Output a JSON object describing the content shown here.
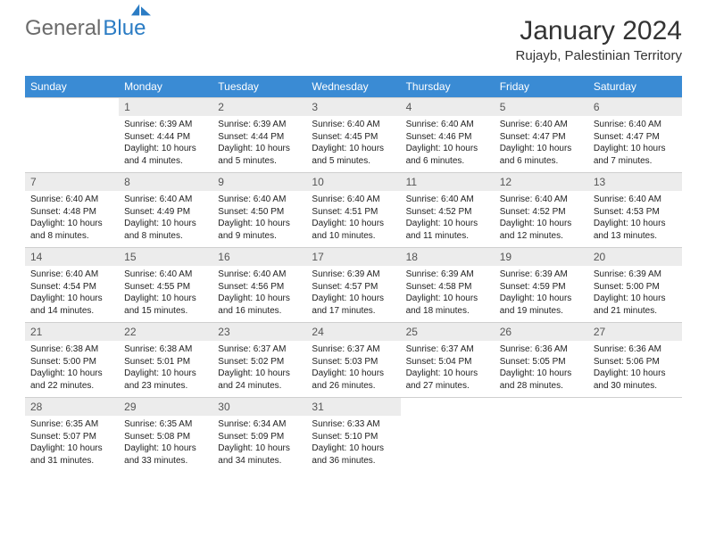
{
  "brand": {
    "part1": "General",
    "part2": "Blue"
  },
  "title": "January 2024",
  "location": "Rujayb, Palestinian Territory",
  "colors": {
    "header_bg": "#3a8bd4",
    "header_text": "#ffffff",
    "daynum_bg": "#ececec",
    "brand_blue": "#2b7cc4",
    "brand_gray": "#6b6b6b",
    "cell_border": "#cfcfcf"
  },
  "weekdays": [
    "Sunday",
    "Monday",
    "Tuesday",
    "Wednesday",
    "Thursday",
    "Friday",
    "Saturday"
  ],
  "start_blanks": 1,
  "days": [
    {
      "n": "1",
      "sunrise": "Sunrise: 6:39 AM",
      "sunset": "Sunset: 4:44 PM",
      "daylight": "Daylight: 10 hours and 4 minutes."
    },
    {
      "n": "2",
      "sunrise": "Sunrise: 6:39 AM",
      "sunset": "Sunset: 4:44 PM",
      "daylight": "Daylight: 10 hours and 5 minutes."
    },
    {
      "n": "3",
      "sunrise": "Sunrise: 6:40 AM",
      "sunset": "Sunset: 4:45 PM",
      "daylight": "Daylight: 10 hours and 5 minutes."
    },
    {
      "n": "4",
      "sunrise": "Sunrise: 6:40 AM",
      "sunset": "Sunset: 4:46 PM",
      "daylight": "Daylight: 10 hours and 6 minutes."
    },
    {
      "n": "5",
      "sunrise": "Sunrise: 6:40 AM",
      "sunset": "Sunset: 4:47 PM",
      "daylight": "Daylight: 10 hours and 6 minutes."
    },
    {
      "n": "6",
      "sunrise": "Sunrise: 6:40 AM",
      "sunset": "Sunset: 4:47 PM",
      "daylight": "Daylight: 10 hours and 7 minutes."
    },
    {
      "n": "7",
      "sunrise": "Sunrise: 6:40 AM",
      "sunset": "Sunset: 4:48 PM",
      "daylight": "Daylight: 10 hours and 8 minutes."
    },
    {
      "n": "8",
      "sunrise": "Sunrise: 6:40 AM",
      "sunset": "Sunset: 4:49 PM",
      "daylight": "Daylight: 10 hours and 8 minutes."
    },
    {
      "n": "9",
      "sunrise": "Sunrise: 6:40 AM",
      "sunset": "Sunset: 4:50 PM",
      "daylight": "Daylight: 10 hours and 9 minutes."
    },
    {
      "n": "10",
      "sunrise": "Sunrise: 6:40 AM",
      "sunset": "Sunset: 4:51 PM",
      "daylight": "Daylight: 10 hours and 10 minutes."
    },
    {
      "n": "11",
      "sunrise": "Sunrise: 6:40 AM",
      "sunset": "Sunset: 4:52 PM",
      "daylight": "Daylight: 10 hours and 11 minutes."
    },
    {
      "n": "12",
      "sunrise": "Sunrise: 6:40 AM",
      "sunset": "Sunset: 4:52 PM",
      "daylight": "Daylight: 10 hours and 12 minutes."
    },
    {
      "n": "13",
      "sunrise": "Sunrise: 6:40 AM",
      "sunset": "Sunset: 4:53 PM",
      "daylight": "Daylight: 10 hours and 13 minutes."
    },
    {
      "n": "14",
      "sunrise": "Sunrise: 6:40 AM",
      "sunset": "Sunset: 4:54 PM",
      "daylight": "Daylight: 10 hours and 14 minutes."
    },
    {
      "n": "15",
      "sunrise": "Sunrise: 6:40 AM",
      "sunset": "Sunset: 4:55 PM",
      "daylight": "Daylight: 10 hours and 15 minutes."
    },
    {
      "n": "16",
      "sunrise": "Sunrise: 6:40 AM",
      "sunset": "Sunset: 4:56 PM",
      "daylight": "Daylight: 10 hours and 16 minutes."
    },
    {
      "n": "17",
      "sunrise": "Sunrise: 6:39 AM",
      "sunset": "Sunset: 4:57 PM",
      "daylight": "Daylight: 10 hours and 17 minutes."
    },
    {
      "n": "18",
      "sunrise": "Sunrise: 6:39 AM",
      "sunset": "Sunset: 4:58 PM",
      "daylight": "Daylight: 10 hours and 18 minutes."
    },
    {
      "n": "19",
      "sunrise": "Sunrise: 6:39 AM",
      "sunset": "Sunset: 4:59 PM",
      "daylight": "Daylight: 10 hours and 19 minutes."
    },
    {
      "n": "20",
      "sunrise": "Sunrise: 6:39 AM",
      "sunset": "Sunset: 5:00 PM",
      "daylight": "Daylight: 10 hours and 21 minutes."
    },
    {
      "n": "21",
      "sunrise": "Sunrise: 6:38 AM",
      "sunset": "Sunset: 5:00 PM",
      "daylight": "Daylight: 10 hours and 22 minutes."
    },
    {
      "n": "22",
      "sunrise": "Sunrise: 6:38 AM",
      "sunset": "Sunset: 5:01 PM",
      "daylight": "Daylight: 10 hours and 23 minutes."
    },
    {
      "n": "23",
      "sunrise": "Sunrise: 6:37 AM",
      "sunset": "Sunset: 5:02 PM",
      "daylight": "Daylight: 10 hours and 24 minutes."
    },
    {
      "n": "24",
      "sunrise": "Sunrise: 6:37 AM",
      "sunset": "Sunset: 5:03 PM",
      "daylight": "Daylight: 10 hours and 26 minutes."
    },
    {
      "n": "25",
      "sunrise": "Sunrise: 6:37 AM",
      "sunset": "Sunset: 5:04 PM",
      "daylight": "Daylight: 10 hours and 27 minutes."
    },
    {
      "n": "26",
      "sunrise": "Sunrise: 6:36 AM",
      "sunset": "Sunset: 5:05 PM",
      "daylight": "Daylight: 10 hours and 28 minutes."
    },
    {
      "n": "27",
      "sunrise": "Sunrise: 6:36 AM",
      "sunset": "Sunset: 5:06 PM",
      "daylight": "Daylight: 10 hours and 30 minutes."
    },
    {
      "n": "28",
      "sunrise": "Sunrise: 6:35 AM",
      "sunset": "Sunset: 5:07 PM",
      "daylight": "Daylight: 10 hours and 31 minutes."
    },
    {
      "n": "29",
      "sunrise": "Sunrise: 6:35 AM",
      "sunset": "Sunset: 5:08 PM",
      "daylight": "Daylight: 10 hours and 33 minutes."
    },
    {
      "n": "30",
      "sunrise": "Sunrise: 6:34 AM",
      "sunset": "Sunset: 5:09 PM",
      "daylight": "Daylight: 10 hours and 34 minutes."
    },
    {
      "n": "31",
      "sunrise": "Sunrise: 6:33 AM",
      "sunset": "Sunset: 5:10 PM",
      "daylight": "Daylight: 10 hours and 36 minutes."
    }
  ]
}
